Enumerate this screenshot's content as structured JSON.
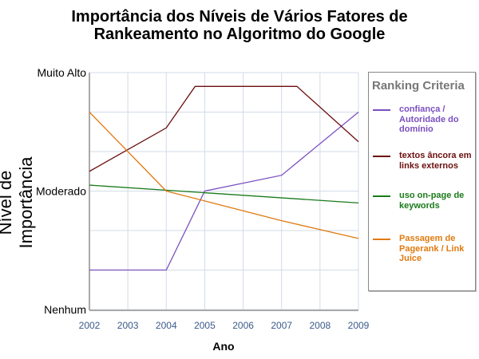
{
  "chart_data": {
    "type": "line",
    "title": "Importância dos Níveis de Vários Fatores de Rankeamento no Algoritmo do Google",
    "title_lines": [
      "Importância dos Níveis de Vários Fatores de",
      "Rankeamento no Algoritmo do Google"
    ],
    "xlabel": "Ano",
    "ylabel": "Nível de Importância",
    "xlim": [
      2002,
      2009
    ],
    "ylim": [
      0,
      6
    ],
    "x_ticks": [
      "2002",
      "2003",
      "2004",
      "2005",
      "2006",
      "2007",
      "2008",
      "2009"
    ],
    "y_ticks": [
      {
        "value": 0,
        "label": "Nenhum"
      },
      {
        "value": 3,
        "label": "Moderado"
      },
      {
        "value": 6,
        "label": "Muito Alto"
      }
    ],
    "grid": true,
    "legend": {
      "title": "Ranking Criteria",
      "placement": "right"
    },
    "series": [
      {
        "name": "confiança / Autoridade do domínio",
        "color": "#7b4fbf",
        "points": [
          [
            2002,
            1.0
          ],
          [
            2004,
            1.0
          ],
          [
            2005,
            3.0
          ],
          [
            2007,
            3.4
          ],
          [
            2009,
            5.0
          ]
        ]
      },
      {
        "name": "textos âncora em links externos",
        "color": "#6b0f0f",
        "points": [
          [
            2002,
            3.5
          ],
          [
            2004,
            4.6
          ],
          [
            2004.75,
            5.65
          ],
          [
            2007.4,
            5.65
          ],
          [
            2009,
            4.25
          ]
        ]
      },
      {
        "name": "uso on-page de keywords",
        "color": "#1a7a1a",
        "points": [
          [
            2002,
            3.15
          ],
          [
            2009,
            2.7
          ]
        ]
      },
      {
        "name": "Passagem de Pagerank / Link Juice",
        "color": "#e07a10",
        "points": [
          [
            2002,
            5.0
          ],
          [
            2004,
            3.0
          ],
          [
            2007,
            2.25
          ],
          [
            2009,
            1.8
          ]
        ]
      }
    ]
  }
}
